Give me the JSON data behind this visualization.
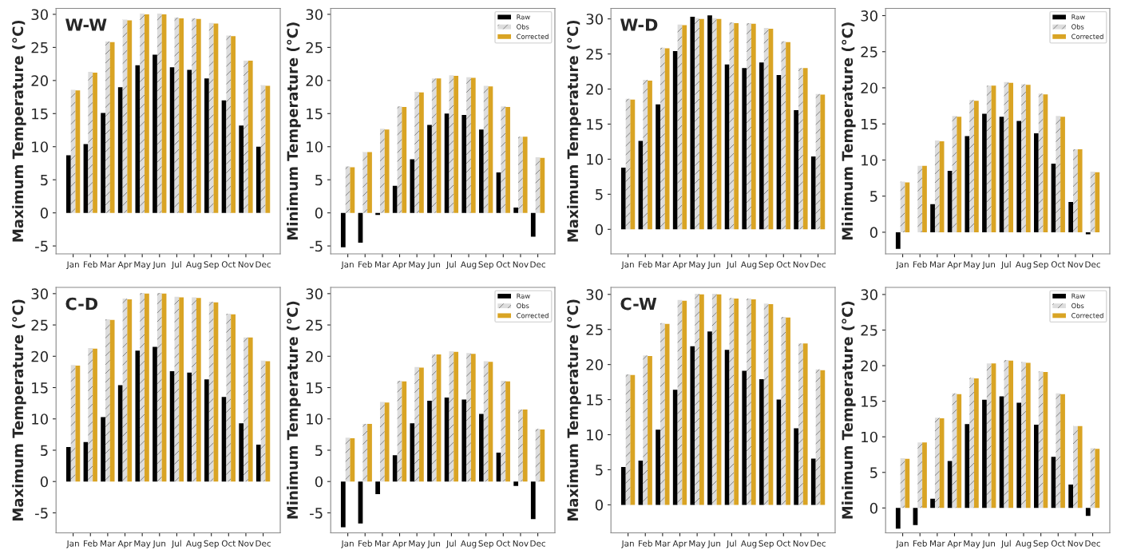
{
  "chart_data": [
    {
      "type": "bar",
      "annotations": [
        "W-W"
      ],
      "ylabel": "Maximum Temperature (°C)",
      "categories": [
        "Jan",
        "Feb",
        "Mar",
        "Apr",
        "May",
        "Jun",
        "Jul",
        "Aug",
        "Sep",
        "Oct",
        "Nov",
        "Dec"
      ],
      "ylim": [
        -6.2,
        30.9
      ],
      "yticks": [
        -5,
        0,
        5,
        10,
        15,
        20,
        25,
        30
      ],
      "grid": false,
      "series": [
        {
          "color": "#000000",
          "values": [
            8.7,
            10.4,
            15.1,
            19.0,
            22.3,
            23.9,
            22.0,
            21.6,
            20.3,
            17.0,
            13.2,
            10.0
          ]
        },
        {
          "color": "#dddddd",
          "values": [
            18.6,
            21.3,
            25.9,
            29.2,
            30.1,
            30.1,
            29.5,
            29.4,
            28.7,
            26.8,
            23.0,
            19.3
          ]
        },
        {
          "color": "#d9a424",
          "values": [
            18.5,
            21.2,
            25.8,
            29.1,
            30.0,
            30.0,
            29.4,
            29.3,
            28.6,
            26.7,
            23.0,
            19.2
          ]
        }
      ]
    },
    {
      "type": "bar",
      "ylabel": "Minimum Temperature (°C)",
      "categories": [
        "Jan",
        "Feb",
        "Mar",
        "Apr",
        "May",
        "Jun",
        "Jul",
        "Aug",
        "Sep",
        "Oct",
        "Nov",
        "Dec"
      ],
      "ylim": [
        -6.2,
        30.9
      ],
      "yticks": [
        -5,
        0,
        5,
        10,
        15,
        20,
        25,
        30
      ],
      "grid": false,
      "legend": "top right",
      "series": [
        {
          "name": "Raw",
          "color": "#000000",
          "values": [
            -5.2,
            -4.5,
            -0.3,
            4.1,
            8.1,
            13.3,
            15.0,
            14.8,
            12.6,
            6.1,
            0.8,
            -3.6
          ]
        },
        {
          "name": "Obs",
          "color": "#dddddd",
          "values": [
            7.0,
            9.2,
            12.7,
            16.1,
            18.3,
            20.3,
            20.8,
            20.5,
            19.2,
            16.1,
            11.5,
            8.4
          ]
        },
        {
          "name": "Corrected",
          "color": "#d9a424",
          "values": [
            6.9,
            9.2,
            12.6,
            16.0,
            18.2,
            20.3,
            20.7,
            20.4,
            19.1,
            16.0,
            11.5,
            8.3
          ]
        }
      ]
    },
    {
      "type": "bar",
      "annotations": [
        "W-D"
      ],
      "ylabel": "Maximum Temperature (°C)",
      "categories": [
        "Jan",
        "Feb",
        "Mar",
        "Apr",
        "May",
        "Jun",
        "Jul",
        "Aug",
        "Sep",
        "Oct",
        "Nov",
        "Dec"
      ],
      "ylim": [
        -3.5,
        31.5
      ],
      "yticks": [
        0,
        5,
        10,
        15,
        20,
        25,
        30
      ],
      "grid": false,
      "series": [
        {
          "color": "#000000",
          "values": [
            8.8,
            12.6,
            17.8,
            25.4,
            30.3,
            30.5,
            23.5,
            23.0,
            23.8,
            22.0,
            17.0,
            10.4
          ]
        },
        {
          "color": "#dddddd",
          "values": [
            18.6,
            21.3,
            25.9,
            29.2,
            30.1,
            30.1,
            29.5,
            29.4,
            28.7,
            26.8,
            23.0,
            19.3
          ]
        },
        {
          "color": "#d9a424",
          "values": [
            18.5,
            21.2,
            25.8,
            29.1,
            30.0,
            30.0,
            29.4,
            29.3,
            28.6,
            26.7,
            23.0,
            19.2
          ]
        }
      ]
    },
    {
      "type": "bar",
      "ylabel": "Minimum Temperature (°C)",
      "categories": [
        "Jan",
        "Feb",
        "Mar",
        "Apr",
        "May",
        "Jun",
        "Jul",
        "Aug",
        "Sep",
        "Oct",
        "Nov",
        "Dec"
      ],
      "ylim": [
        -3.0,
        31.0
      ],
      "yticks": [
        0,
        5,
        10,
        15,
        20,
        25,
        30
      ],
      "grid": false,
      "legend": "top right",
      "series": [
        {
          "name": "Raw",
          "color": "#000000",
          "values": [
            -2.3,
            0.0,
            3.9,
            8.5,
            13.3,
            16.4,
            16.0,
            15.4,
            13.7,
            9.5,
            4.2,
            -0.3
          ]
        },
        {
          "name": "Obs",
          "color": "#dddddd",
          "values": [
            7.0,
            9.2,
            12.7,
            16.1,
            18.3,
            20.3,
            20.8,
            20.5,
            19.2,
            16.1,
            11.5,
            8.4
          ]
        },
        {
          "name": "Corrected",
          "color": "#d9a424",
          "values": [
            6.9,
            9.2,
            12.6,
            16.0,
            18.2,
            20.3,
            20.7,
            20.4,
            19.1,
            16.0,
            11.5,
            8.3
          ]
        }
      ]
    },
    {
      "type": "bar",
      "annotations": [
        "C-D"
      ],
      "ylabel": "Maximum Temperature (°C)",
      "categories": [
        "Jan",
        "Feb",
        "Mar",
        "Apr",
        "May",
        "Jun",
        "Jul",
        "Aug",
        "Sep",
        "Oct",
        "Nov",
        "Dec"
      ],
      "ylim": [
        -8.2,
        31.0
      ],
      "yticks": [
        -5,
        0,
        5,
        10,
        15,
        20,
        25,
        30
      ],
      "grid": false,
      "series": [
        {
          "color": "#000000",
          "values": [
            5.5,
            6.3,
            10.3,
            15.4,
            20.9,
            21.5,
            17.6,
            17.4,
            16.3,
            13.5,
            9.3,
            5.9
          ]
        },
        {
          "color": "#dddddd",
          "values": [
            18.6,
            21.3,
            25.9,
            29.2,
            30.1,
            30.1,
            29.5,
            29.4,
            28.7,
            26.8,
            23.0,
            19.3
          ]
        },
        {
          "color": "#d9a424",
          "values": [
            18.5,
            21.2,
            25.8,
            29.1,
            30.0,
            30.0,
            29.4,
            29.3,
            28.6,
            26.7,
            23.0,
            19.2
          ]
        }
      ]
    },
    {
      "type": "bar",
      "ylabel": "Minimum Temperature (°C)",
      "categories": [
        "Jan",
        "Feb",
        "Mar",
        "Apr",
        "May",
        "Jun",
        "Jul",
        "Aug",
        "Sep",
        "Oct",
        "Nov",
        "Dec"
      ],
      "ylim": [
        -8.2,
        31.0
      ],
      "yticks": [
        -5,
        0,
        5,
        10,
        15,
        20,
        25,
        30
      ],
      "grid": false,
      "legend": "top right",
      "series": [
        {
          "name": "Raw",
          "color": "#000000",
          "values": [
            -7.3,
            -6.7,
            -2.0,
            4.2,
            9.3,
            12.9,
            13.4,
            13.1,
            10.8,
            4.6,
            -0.7,
            -6.0
          ]
        },
        {
          "name": "Obs",
          "color": "#dddddd",
          "values": [
            7.0,
            9.2,
            12.7,
            16.1,
            18.3,
            20.3,
            20.8,
            20.5,
            19.2,
            16.1,
            11.5,
            8.4
          ]
        },
        {
          "name": "Corrected",
          "color": "#d9a424",
          "values": [
            6.9,
            9.2,
            12.6,
            16.0,
            18.2,
            20.3,
            20.7,
            20.4,
            19.1,
            16.0,
            11.5,
            8.3
          ]
        }
      ]
    },
    {
      "type": "bar",
      "annotations": [
        "C-W"
      ],
      "ylabel": "Maximum Temperature (°C)",
      "categories": [
        "Jan",
        "Feb",
        "Mar",
        "Apr",
        "May",
        "Jun",
        "Jul",
        "Aug",
        "Sep",
        "Oct",
        "Nov",
        "Dec"
      ],
      "ylim": [
        -4.0,
        31.0
      ],
      "yticks": [
        0,
        5,
        10,
        15,
        20,
        25,
        30
      ],
      "grid": false,
      "series": [
        {
          "color": "#000000",
          "values": [
            5.4,
            6.3,
            10.7,
            16.4,
            22.6,
            24.7,
            22.1,
            19.1,
            17.9,
            15.0,
            10.9,
            6.6
          ]
        },
        {
          "color": "#dddddd",
          "values": [
            18.6,
            21.3,
            25.9,
            29.2,
            30.1,
            30.1,
            29.5,
            29.4,
            28.7,
            26.8,
            23.0,
            19.3
          ]
        },
        {
          "color": "#d9a424",
          "values": [
            18.5,
            21.2,
            25.8,
            29.1,
            30.0,
            30.0,
            29.4,
            29.3,
            28.6,
            26.7,
            23.0,
            19.2
          ]
        }
      ]
    },
    {
      "type": "bar",
      "ylabel": "Minimum Temperature (°C)",
      "categories": [
        "Jan",
        "Feb",
        "Mar",
        "Apr",
        "May",
        "Jun",
        "Jul",
        "Aug",
        "Sep",
        "Oct",
        "Nov",
        "Dec"
      ],
      "ylim": [
        -3.5,
        31.0
      ],
      "yticks": [
        0,
        5,
        10,
        15,
        20,
        25,
        30
      ],
      "grid": false,
      "legend": "top right",
      "series": [
        {
          "name": "Raw",
          "color": "#000000",
          "values": [
            -2.9,
            -2.4,
            1.3,
            6.6,
            11.8,
            15.2,
            15.7,
            14.8,
            11.7,
            7.2,
            3.3,
            -1.1
          ]
        },
        {
          "name": "Obs",
          "color": "#dddddd",
          "values": [
            7.0,
            9.2,
            12.7,
            16.1,
            18.3,
            20.3,
            20.8,
            20.5,
            19.2,
            16.1,
            11.5,
            8.4
          ]
        },
        {
          "name": "Corrected",
          "color": "#d9a424",
          "values": [
            6.9,
            9.2,
            12.6,
            16.0,
            18.2,
            20.3,
            20.7,
            20.4,
            19.1,
            16.0,
            11.5,
            8.3
          ]
        }
      ]
    }
  ]
}
